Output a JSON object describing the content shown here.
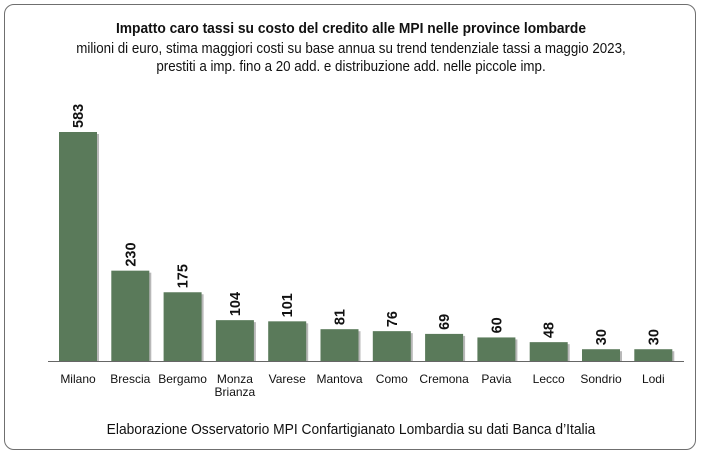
{
  "chart_data": {
    "type": "bar",
    "title": "Impatto caro tassi su costo del credito alle MPI nelle province lombarde",
    "subtitle_lines": [
      "milioni di euro, stima maggiori costi su base annua su trend tendenziale tassi a maggio 2023,",
      "prestiti a imp. fino a 20 add. e distribuzione add. nelle piccole imp."
    ],
    "categories": [
      [
        "Milano"
      ],
      [
        "Brescia"
      ],
      [
        "Bergamo"
      ],
      [
        "Monza",
        "Brianza"
      ],
      [
        "Varese"
      ],
      [
        "Mantova"
      ],
      [
        "Como"
      ],
      [
        "Cremona"
      ],
      [
        "Pavia"
      ],
      [
        "Lecco"
      ],
      [
        "Sondrio"
      ],
      [
        "Lodi"
      ]
    ],
    "values": [
      583,
      230,
      175,
      104,
      101,
      81,
      76,
      69,
      60,
      48,
      30,
      30
    ],
    "ylim": [
      0,
      600
    ],
    "bar_color": "#5a7a5a",
    "xlabel": "",
    "ylabel": "",
    "grid": false,
    "legend": "none"
  },
  "footer": "Elaborazione Osservatorio MPI Confartigianato Lombardia su dati Banca d’Italia"
}
